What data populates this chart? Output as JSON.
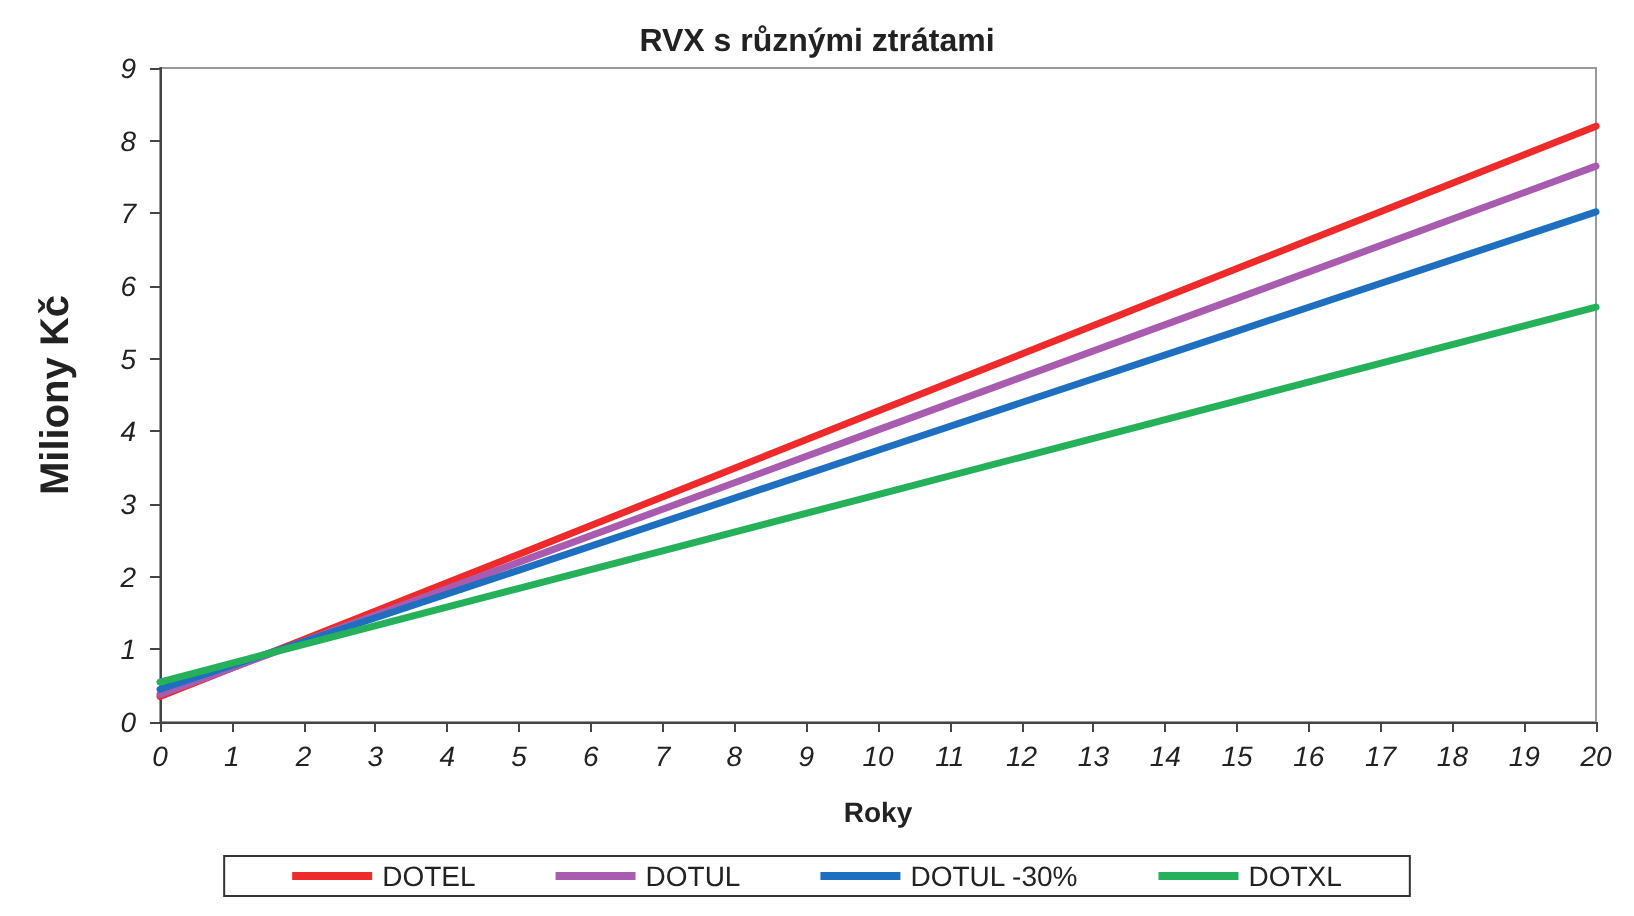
{
  "chart_data": {
    "type": "line",
    "title": "RVX s různými ztrátami",
    "xlabel": "Roky",
    "ylabel": "Miliony Kč",
    "x": [
      0,
      5,
      10,
      15,
      20
    ],
    "series": [
      {
        "name": "DOTEL",
        "color": "#ee2a2a",
        "values": [
          0.35,
          2.31,
          4.28,
          6.24,
          8.2
        ]
      },
      {
        "name": "DOTUL",
        "color": "#a95bb0",
        "values": [
          0.38,
          2.2,
          4.02,
          5.83,
          7.65
        ]
      },
      {
        "name": "DOTUL -30%",
        "color": "#1f6fc0",
        "values": [
          0.45,
          2.09,
          3.74,
          5.38,
          7.02
        ]
      },
      {
        "name": "DOTXL",
        "color": "#25b05a",
        "values": [
          0.55,
          1.84,
          3.13,
          4.42,
          5.71
        ]
      }
    ],
    "xlim": [
      0,
      20
    ],
    "xticks": [
      0,
      1,
      2,
      3,
      4,
      5,
      6,
      7,
      8,
      9,
      10,
      11,
      12,
      13,
      14,
      15,
      16,
      17,
      18,
      19,
      20
    ],
    "ylim": [
      0,
      9
    ],
    "yticks": [
      0,
      1,
      2,
      3,
      4,
      5,
      6,
      7,
      8,
      9
    ],
    "grid": false,
    "legend": "bottom",
    "marker": "none",
    "line_style": "solid"
  }
}
